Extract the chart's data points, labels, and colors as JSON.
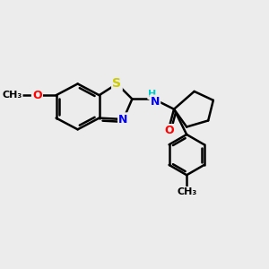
{
  "bg_color": "#ececec",
  "bond_color": "#000000",
  "bond_width": 1.8,
  "atom_colors": {
    "S": "#cccc00",
    "N": "#0000ff",
    "O": "#ff0000",
    "H": "#00cccc",
    "C": "#000000"
  },
  "font_size": 9,
  "figsize": [
    3.0,
    3.0
  ],
  "dpi": 100
}
